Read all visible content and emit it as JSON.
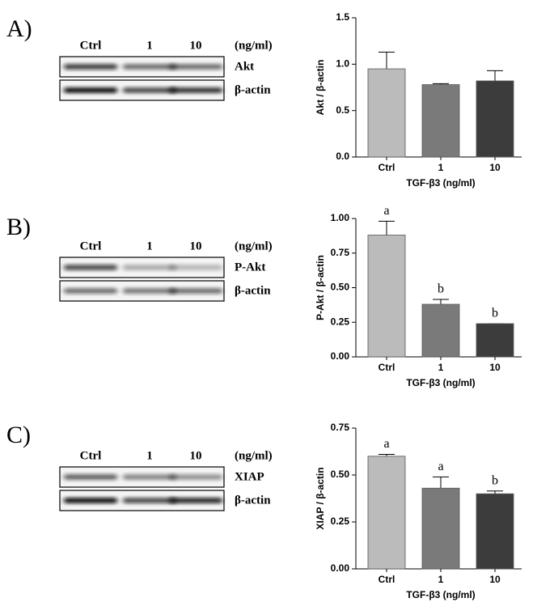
{
  "panels": [
    {
      "label": "A)",
      "lanes": [
        "Ctrl",
        "1",
        "10"
      ],
      "unit": "(ng/ml)",
      "bands": [
        "Akt",
        "β-actin"
      ]
    },
    {
      "label": "B)",
      "lanes": [
        "Ctrl",
        "1",
        "10"
      ],
      "unit": "(ng/ml)",
      "bands": [
        "P-Akt",
        "β-actin"
      ]
    },
    {
      "label": "C)",
      "lanes": [
        "Ctrl",
        "1",
        "10"
      ],
      "unit": "(ng/ml)",
      "bands": [
        "XIAP",
        "β-actin"
      ]
    }
  ],
  "chart_data": [
    {
      "type": "bar",
      "y_label": "Akt / β-actin",
      "x_label": "TGF-β3 (ng/ml)",
      "categories": [
        "Ctrl",
        "1",
        "10"
      ],
      "values": [
        0.95,
        0.78,
        0.82
      ],
      "errors": [
        0.18,
        0.01,
        0.11
      ],
      "colors": [
        "#bbbbbb",
        "#7a7a7a",
        "#3c3c3c"
      ],
      "ylim": [
        0,
        1.5
      ],
      "yticks": [
        {
          "value": 0,
          "label": "0.0"
        },
        0.5,
        {
          "value": 1,
          "label": "1.0"
        },
        1.5
      ]
    },
    {
      "type": "bar",
      "y_label": "P-Akt / β-actin",
      "x_label": "TGF-β3 (ng/ml)",
      "categories": [
        "Ctrl",
        "1",
        "10"
      ],
      "values": [
        0.88,
        0.38,
        0.24
      ],
      "errors": [
        0.1,
        0.035,
        0
      ],
      "colors": [
        "#bbbbbb",
        "#7a7a7a",
        "#3c3c3c"
      ],
      "annotations": [
        "a",
        "b",
        "b"
      ],
      "ylim": [
        0,
        1
      ],
      "yticks": [
        {
          "value": 0,
          "label": "0.00"
        },
        0.25,
        {
          "value": 0.5,
          "label": "0.50"
        },
        0.75,
        {
          "value": 1,
          "label": "1.00"
        }
      ]
    },
    {
      "type": "bar",
      "y_label": "XIAP / β-actin",
      "x_label": "TGF-β3 (ng/ml)",
      "categories": [
        "Ctrl",
        "1",
        "10"
      ],
      "values": [
        0.6,
        0.43,
        0.4
      ],
      "errors": [
        0.01,
        0.06,
        0.015
      ],
      "colors": [
        "#bbbbbb",
        "#7a7a7a",
        "#3c3c3c"
      ],
      "annotations": [
        "a",
        "a",
        "b"
      ],
      "ylim": [
        0,
        0.75
      ],
      "yticks": [
        {
          "value": 0,
          "label": "0.00"
        },
        0.25,
        {
          "value": 0.5,
          "label": "0.50"
        },
        0.75
      ]
    }
  ]
}
